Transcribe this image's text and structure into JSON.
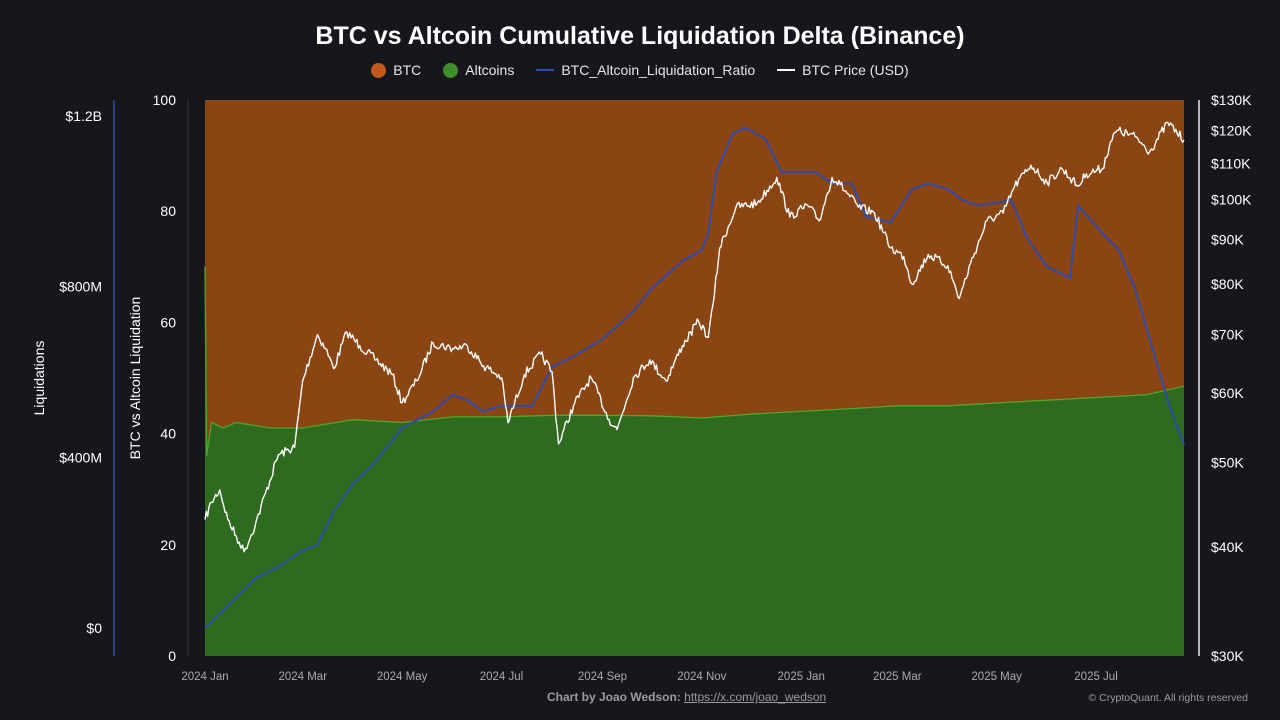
{
  "chart_data": {
    "type": "area",
    "title": "BTC vs Altcoin Cumulative Liquidation Delta (Binance)",
    "legend_position": "top-center",
    "grid": false,
    "legend": [
      {
        "name": "BTC",
        "kind": "area",
        "color": "#8b4513"
      },
      {
        "name": "Altcoins",
        "kind": "area",
        "color": "#2e6b1e"
      },
      {
        "name": "BTC_Altcoin_Liquidation_Ratio",
        "kind": "line",
        "color": "#2f4aa8"
      },
      {
        "name": "BTC Price (USD)",
        "kind": "line",
        "color": "#ffffff"
      }
    ],
    "axes": {
      "liquidations": {
        "label": "Liquidations",
        "ticks": [
          "$1.2B",
          "$800M",
          "$400M",
          "$0"
        ],
        "range": [
          0,
          1200000000
        ]
      },
      "ratio": {
        "label": "BTC vs Altcoin Liquidation",
        "ticks": [
          "100",
          "80",
          "60",
          "40",
          "20",
          "0"
        ],
        "range": [
          0,
          100
        ]
      },
      "price": {
        "label": "",
        "scale": "log",
        "ticks": [
          "$130K",
          "$120K",
          "$110K",
          "$100K",
          "$90K",
          "$80K",
          "$70K",
          "$60K",
          "$50K",
          "$40K",
          "$30K"
        ],
        "range": [
          30000,
          130000
        ]
      },
      "x": {
        "ticks": [
          "2024 Jan",
          "2024 Mar",
          "2024 May",
          "2024 Jul",
          "2024 Sep",
          "2024 Nov",
          "2025 Jan",
          "2025 Mar",
          "2025 May",
          "2025 Jul"
        ],
        "range": [
          "2024-01-01",
          "2025-08-24"
        ]
      }
    },
    "series": [
      {
        "name": "Altcoins",
        "unit": "% share (ratio axis)",
        "points": [
          [
            "2024-01-01",
            70
          ],
          [
            "2024-01-02",
            36
          ],
          [
            "2024-01-05",
            42
          ],
          [
            "2024-01-12",
            41
          ],
          [
            "2024-01-20",
            42
          ],
          [
            "2024-02-10",
            41
          ],
          [
            "2024-03-01",
            41
          ],
          [
            "2024-04-01",
            42.5
          ],
          [
            "2024-05-01",
            42
          ],
          [
            "2024-06-01",
            43
          ],
          [
            "2024-07-01",
            43
          ],
          [
            "2024-08-01",
            43.3
          ],
          [
            "2024-09-01",
            43.3
          ],
          [
            "2024-10-01",
            43.2
          ],
          [
            "2024-11-01",
            42.8
          ],
          [
            "2024-12-01",
            43.5
          ],
          [
            "2025-01-01",
            44
          ],
          [
            "2025-02-01",
            44.5
          ],
          [
            "2025-03-01",
            45
          ],
          [
            "2025-04-01",
            45
          ],
          [
            "2025-05-01",
            45.5
          ],
          [
            "2025-06-01",
            46
          ],
          [
            "2025-07-01",
            46.5
          ],
          [
            "2025-08-01",
            47
          ],
          [
            "2025-08-24",
            48.5
          ]
        ]
      },
      {
        "name": "BTC_Altcoin_Liquidation_Ratio",
        "unit": "ratio axis",
        "points": [
          [
            "2024-01-01",
            5
          ],
          [
            "2024-01-15",
            9
          ],
          [
            "2024-02-01",
            14
          ],
          [
            "2024-02-15",
            16
          ],
          [
            "2024-03-01",
            19
          ],
          [
            "2024-03-10",
            20
          ],
          [
            "2024-03-20",
            26
          ],
          [
            "2024-04-01",
            31
          ],
          [
            "2024-04-15",
            35
          ],
          [
            "2024-05-01",
            41
          ],
          [
            "2024-05-20",
            44
          ],
          [
            "2024-06-01",
            47
          ],
          [
            "2024-06-10",
            46
          ],
          [
            "2024-06-20",
            44
          ],
          [
            "2024-07-01",
            45
          ],
          [
            "2024-07-20",
            45
          ],
          [
            "2024-08-01",
            52
          ],
          [
            "2024-08-15",
            54
          ],
          [
            "2024-09-01",
            57
          ],
          [
            "2024-09-20",
            62
          ],
          [
            "2024-10-01",
            66
          ],
          [
            "2024-10-20",
            71
          ],
          [
            "2024-11-01",
            73
          ],
          [
            "2024-11-05",
            76
          ],
          [
            "2024-11-10",
            87
          ],
          [
            "2024-11-20",
            94
          ],
          [
            "2024-11-28",
            95
          ],
          [
            "2024-12-10",
            93
          ],
          [
            "2024-12-20",
            87
          ],
          [
            "2025-01-10",
            87
          ],
          [
            "2025-01-20",
            85
          ],
          [
            "2025-02-01",
            85
          ],
          [
            "2025-02-10",
            79
          ],
          [
            "2025-02-25",
            78
          ],
          [
            "2025-03-10",
            84
          ],
          [
            "2025-03-20",
            85
          ],
          [
            "2025-04-01",
            84
          ],
          [
            "2025-04-10",
            82
          ],
          [
            "2025-04-20",
            81
          ],
          [
            "2025-05-10",
            82
          ],
          [
            "2025-05-20",
            75
          ],
          [
            "2025-06-01",
            70
          ],
          [
            "2025-06-15",
            68
          ],
          [
            "2025-06-20",
            81
          ],
          [
            "2025-07-05",
            76
          ],
          [
            "2025-07-15",
            73
          ],
          [
            "2025-07-25",
            66
          ],
          [
            "2025-08-05",
            55
          ],
          [
            "2025-08-15",
            45
          ],
          [
            "2025-08-24",
            38
          ]
        ]
      },
      {
        "name": "BTC Price (USD)",
        "unit": "USD (price axis)",
        "points": [
          [
            "2024-01-01",
            43000
          ],
          [
            "2024-01-05",
            45000
          ],
          [
            "2024-01-10",
            46500
          ],
          [
            "2024-01-15",
            43000
          ],
          [
            "2024-01-22",
            40500
          ],
          [
            "2024-01-25",
            39500
          ],
          [
            "2024-02-01",
            42500
          ],
          [
            "2024-02-15",
            51000
          ],
          [
            "2024-02-25",
            52000
          ],
          [
            "2024-03-01",
            62000
          ],
          [
            "2024-03-10",
            70000
          ],
          [
            "2024-03-15",
            67500
          ],
          [
            "2024-03-20",
            64000
          ],
          [
            "2024-03-28",
            70500
          ],
          [
            "2024-04-05",
            68000
          ],
          [
            "2024-04-15",
            65500
          ],
          [
            "2024-04-25",
            63000
          ],
          [
            "2024-05-01",
            58500
          ],
          [
            "2024-05-10",
            62000
          ],
          [
            "2024-05-20",
            68500
          ],
          [
            "2024-06-01",
            67500
          ],
          [
            "2024-06-10",
            68000
          ],
          [
            "2024-06-20",
            64500
          ],
          [
            "2024-07-01",
            62500
          ],
          [
            "2024-07-05",
            55500
          ],
          [
            "2024-07-15",
            63000
          ],
          [
            "2024-07-25",
            66500
          ],
          [
            "2024-08-01",
            63500
          ],
          [
            "2024-08-05",
            52500
          ],
          [
            "2024-08-15",
            58500
          ],
          [
            "2024-08-25",
            62500
          ],
          [
            "2024-09-05",
            56000
          ],
          [
            "2024-09-10",
            54500
          ],
          [
            "2024-09-20",
            62500
          ],
          [
            "2024-09-30",
            65500
          ],
          [
            "2024-10-10",
            62000
          ],
          [
            "2024-10-20",
            68000
          ],
          [
            "2024-10-30",
            72500
          ],
          [
            "2024-11-05",
            69500
          ],
          [
            "2024-11-08",
            76000
          ],
          [
            "2024-11-12",
            88000
          ],
          [
            "2024-11-22",
            98000
          ],
          [
            "2024-12-05",
            99000
          ],
          [
            "2024-12-17",
            106000
          ],
          [
            "2024-12-25",
            95500
          ],
          [
            "2025-01-05",
            98500
          ],
          [
            "2025-01-12",
            94500
          ],
          [
            "2025-01-20",
            106000
          ],
          [
            "2025-01-25",
            104000
          ],
          [
            "2025-02-05",
            98000
          ],
          [
            "2025-02-15",
            96500
          ],
          [
            "2025-02-25",
            88000
          ],
          [
            "2025-03-05",
            86000
          ],
          [
            "2025-03-10",
            80000
          ],
          [
            "2025-03-20",
            86500
          ],
          [
            "2025-04-01",
            84000
          ],
          [
            "2025-04-08",
            77000
          ],
          [
            "2025-04-15",
            84500
          ],
          [
            "2025-04-25",
            94500
          ],
          [
            "2025-05-05",
            96500
          ],
          [
            "2025-05-12",
            103500
          ],
          [
            "2025-05-22",
            109500
          ],
          [
            "2025-06-01",
            104500
          ],
          [
            "2025-06-10",
            108500
          ],
          [
            "2025-06-20",
            103500
          ],
          [
            "2025-06-25",
            107000
          ],
          [
            "2025-07-05",
            108500
          ],
          [
            "2025-07-10",
            116500
          ],
          [
            "2025-07-14",
            120000
          ],
          [
            "2025-07-25",
            118000
          ],
          [
            "2025-08-03",
            113500
          ],
          [
            "2025-08-14",
            122500
          ],
          [
            "2025-08-24",
            117000
          ]
        ]
      }
    ]
  },
  "footer": {
    "credit_label": "Chart by Joao Wedson:",
    "credit_link": "https://x.com/joao_wedson",
    "copyright": "© CryptoQuant. All rights reserved"
  },
  "colors": {
    "background": "#16171c",
    "btc_area": "#8b4513",
    "alt_area": "#2e6b1e",
    "alt_edge": "#4ea52e",
    "ratio_line": "#2f4aa8",
    "price_line": "#ffffff",
    "btc_swatch": "#c2581c",
    "alt_swatch": "#3f8f2a"
  }
}
